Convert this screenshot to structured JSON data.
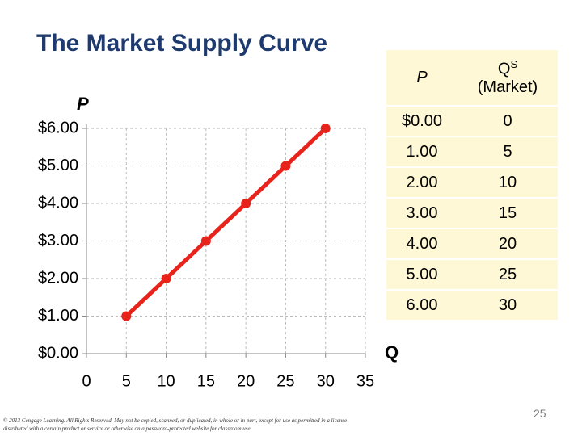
{
  "chart_data": {
    "type": "line",
    "title": "The Market Supply Curve",
    "ylabel": "P",
    "xlabel": "Q",
    "x": [
      5,
      10,
      15,
      20,
      25,
      30
    ],
    "series": [
      {
        "name": "Market supply",
        "color": "#e8231c",
        "values": [
          1,
          2,
          3,
          4,
          5,
          6
        ]
      }
    ],
    "xlim": [
      0,
      35
    ],
    "xticks": [
      0,
      5,
      10,
      15,
      20,
      25,
      30,
      35
    ],
    "ylim": [
      0,
      6
    ],
    "yticks": [
      {
        "value": 0,
        "label": "$0.00"
      },
      {
        "value": 1,
        "label": "$1.00"
      },
      {
        "value": 2,
        "label": "$2.00"
      },
      {
        "value": 3,
        "label": "$3.00"
      },
      {
        "value": 4,
        "label": "$4.00"
      },
      {
        "value": 5,
        "label": "$5.00"
      },
      {
        "value": 6,
        "label": "$6.00"
      }
    ],
    "grid": true
  },
  "table": {
    "header": {
      "p": "P",
      "qs": "Q",
      "qs_sup": "S",
      "qs_note": "(Market)"
    },
    "rows": [
      [
        "$0.00",
        "0"
      ],
      [
        "1.00",
        "5"
      ],
      [
        "2.00",
        "10"
      ],
      [
        "3.00",
        "15"
      ],
      [
        "4.00",
        "20"
      ],
      [
        "5.00",
        "25"
      ],
      [
        "6.00",
        "30"
      ]
    ]
  },
  "footer": "© 2013 Cengage Learning. All Rights Reserved. May not be copied, scanned, or duplicated, in whole or in part, except for use as permitted in a license distributed with a certain product or service or otherwise on a password-protected website for classroom use.",
  "page_number": "25"
}
